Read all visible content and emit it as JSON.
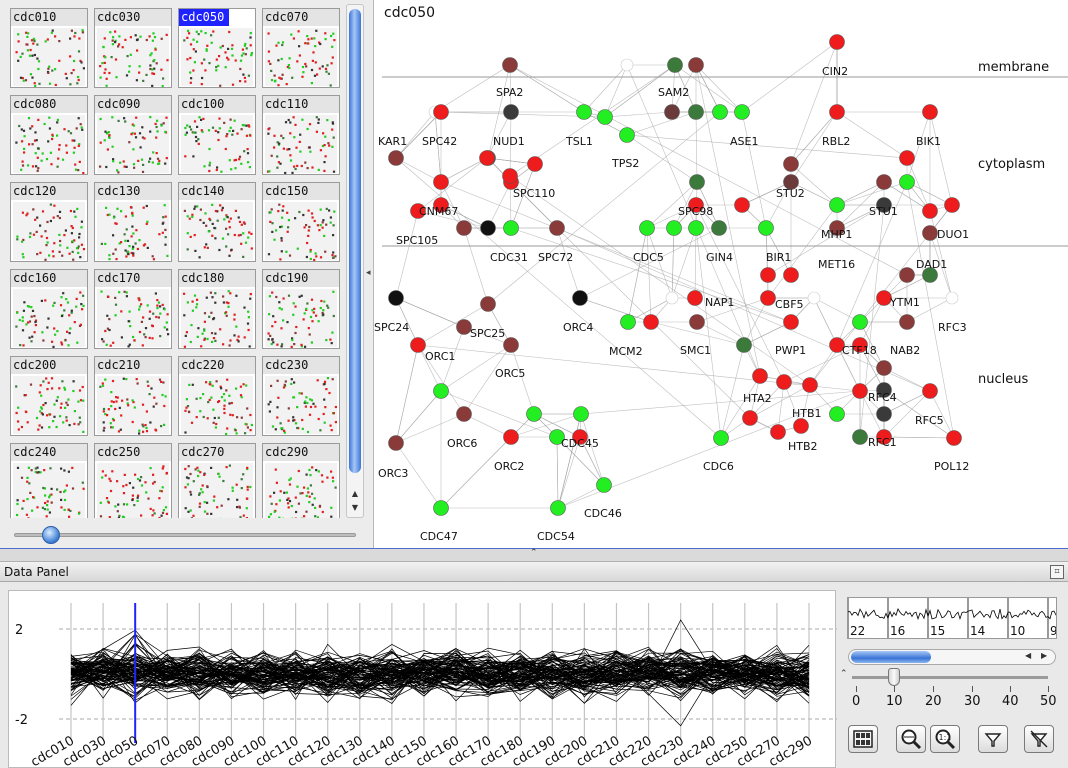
{
  "thumbnails": {
    "items": [
      "cdc010",
      "cdc030",
      "cdc050",
      "cdc070",
      "cdc080",
      "cdc090",
      "cdc100",
      "cdc110",
      "cdc120",
      "cdc130",
      "cdc140",
      "cdc150",
      "cdc160",
      "cdc170",
      "cdc180",
      "cdc190",
      "cdc200",
      "cdc210",
      "cdc220",
      "cdc230",
      "cdc240",
      "cdc250",
      "cdc270",
      "cdc290"
    ],
    "selected": "cdc050"
  },
  "network": {
    "title": "cdc050",
    "regions": [
      "membrane",
      "cytoplasm",
      "nucleus"
    ],
    "genes": [
      "SPA2",
      "SAM2",
      "CIN2",
      "KAR1",
      "SPC42",
      "NUD1",
      "TSL1",
      "ASE1",
      "RBL2",
      "BIK1",
      "TPS2",
      "SPC110",
      "STU2",
      "STU1",
      "CNM67",
      "SPC98",
      "DUO1",
      "SPC105",
      "MHP1",
      "CDC31",
      "SPC72",
      "CDC5",
      "GIN4",
      "BIR1",
      "MET16",
      "DAD1",
      "SPC24",
      "NAP1",
      "CBF5",
      "YTM1",
      "SPC25",
      "ORC4",
      "RFC3",
      "ORC1",
      "MCM2",
      "SMC1",
      "PWP1",
      "CTF18",
      "NAB2",
      "ORC5",
      "HTA2",
      "RFC4",
      "nucleus",
      "HTB1",
      "ORC6",
      "CDC45",
      "RFC5",
      "HTB2",
      "RFC1",
      "ORC3",
      "ORC2",
      "CDC6",
      "POL12",
      "CDC46",
      "CDC47",
      "CDC54"
    ]
  },
  "data_panel": {
    "title": "Data Panel",
    "y_ticks": [
      "2",
      "-2"
    ],
    "x_ticks": [
      "cdc010",
      "cdc030",
      "cdc050",
      "cdc070",
      "cdc080",
      "cdc090",
      "cdc100",
      "cdc110",
      "cdc120",
      "cdc130",
      "cdc140",
      "cdc150",
      "cdc160",
      "cdc170",
      "cdc180",
      "cdc190",
      "cdc200",
      "cdc210",
      "cdc220",
      "cdc230",
      "cdc240",
      "cdc250",
      "cdc270",
      "cdc290"
    ],
    "highlighted_x": "cdc050",
    "mini_numbers": [
      "22",
      "16",
      "15",
      "14",
      "10",
      "9"
    ],
    "threshold": {
      "value": 10,
      "labels": [
        "0",
        "10",
        "20",
        "30",
        "40",
        "50"
      ]
    }
  },
  "colors": {
    "selected_blue": "#1e23ff",
    "red_node": "#ee1c1c",
    "green_node": "#22ee22",
    "dark_red_node": "#8b3a3a",
    "dark_green_node": "#3c7a3c"
  }
}
